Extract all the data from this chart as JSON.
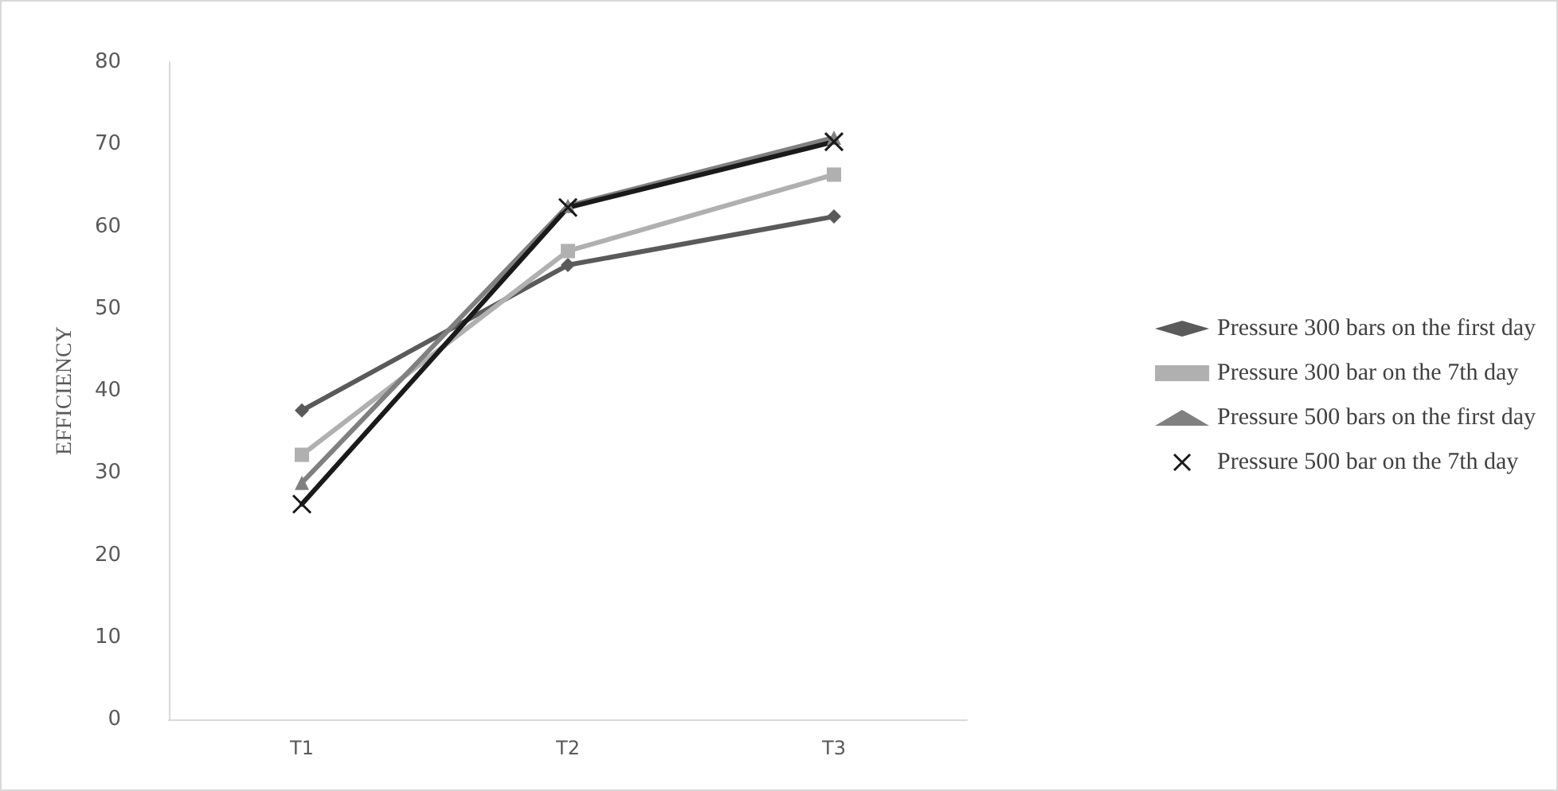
{
  "chart_data": {
    "type": "line",
    "ylabel": "EFFICIENCY",
    "categories": [
      "T1",
      "T2",
      "T3"
    ],
    "series": [
      {
        "name": "Pressure 300 bars on the first day",
        "color": "#5a5a5a",
        "marker": "diamond",
        "values": [
          37.6,
          55.3,
          61.2
        ]
      },
      {
        "name": "Pressure 300 bar on the 7th day",
        "color": "#b0b0b0",
        "marker": "square",
        "values": [
          32.2,
          57.0,
          66.3
        ]
      },
      {
        "name": "Pressure 500 bars on the first day",
        "color": "#808080",
        "marker": "triangle",
        "values": [
          28.8,
          62.5,
          70.8
        ]
      },
      {
        "name": "Pressure 500 bar on the 7th day",
        "color": "#1a1a1a",
        "marker": "cross",
        "values": [
          26.2,
          62.3,
          70.3
        ]
      }
    ],
    "ylim": [
      0,
      80
    ],
    "yticks": [
      0,
      10,
      20,
      30,
      40,
      50,
      60,
      70,
      80
    ],
    "grid": false,
    "legend": "right",
    "line_style": "solid"
  }
}
